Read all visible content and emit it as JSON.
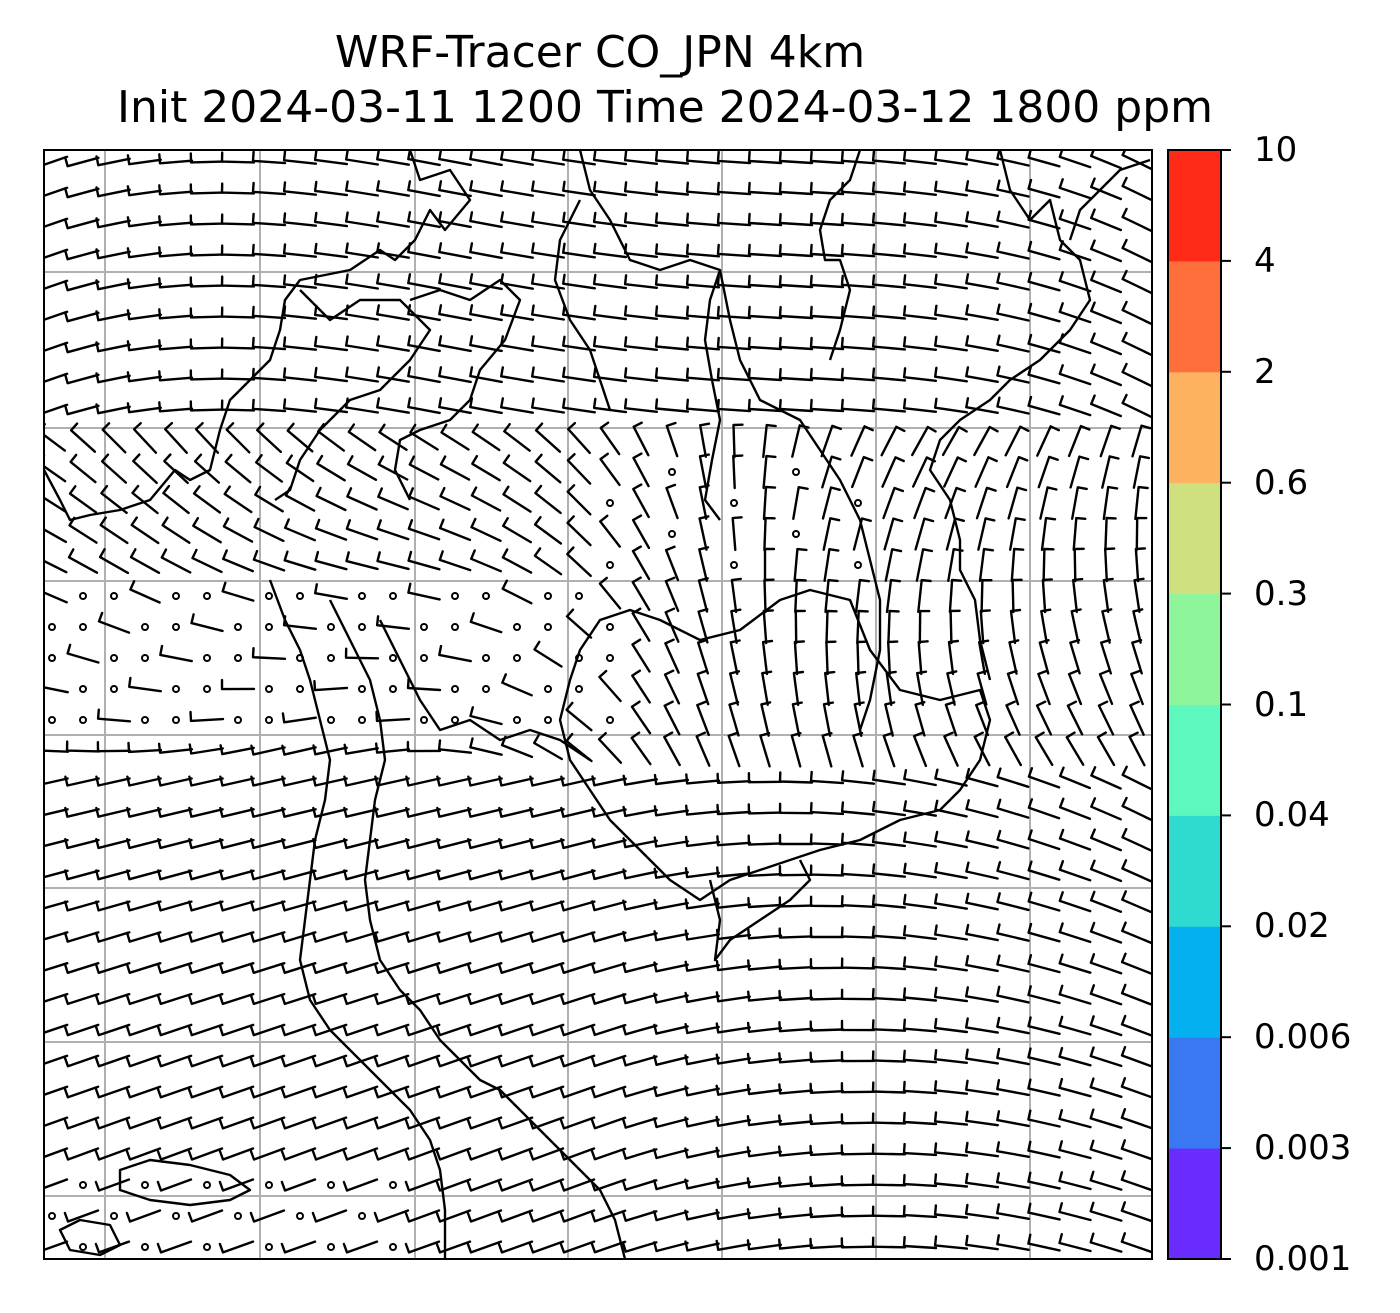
{
  "figure": {
    "title_line1": "WRF-Tracer CO_JPN 4km",
    "title_line2": "Init 2024-03-11 1200 Time 2024-03-12 1800 ppm"
  },
  "colorbar": {
    "levels": [
      "0.001",
      "0.003",
      "0.006",
      "0.02",
      "0.04",
      "0.1",
      "0.3",
      "0.6",
      "2",
      "4",
      "10"
    ],
    "colors": [
      "#6a2bff",
      "#3a78f2",
      "#05b0ee",
      "#2fdbd0",
      "#5cf8bd",
      "#8ff59a",
      "#cfe07e",
      "#fcb260",
      "#fe6f3c",
      "#ff2a18"
    ]
  },
  "map": {
    "features": [
      "coastline",
      "gridlines",
      "wind-barbs",
      "calm-circles"
    ],
    "frame_color": "#000000",
    "gridline_color": "#b0b0b0"
  }
}
